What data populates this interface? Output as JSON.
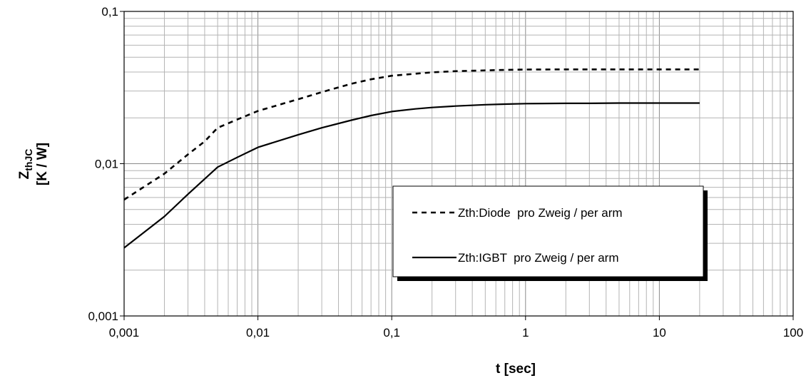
{
  "chart_data": {
    "type": "line",
    "xscale": "log",
    "yscale": "log",
    "xlim": [
      0.001,
      100
    ],
    "ylim": [
      0.001,
      0.1
    ],
    "x_tick_labels": [
      "0,001",
      "0,01",
      "0,1",
      "1",
      "10",
      "100"
    ],
    "y_tick_labels": [
      "0,001",
      "0,01",
      "0,1"
    ],
    "xlabel": "t [sec]",
    "ylabel": {
      "main": "Z",
      "subscript": "thJC",
      "unit": "[K / W]"
    },
    "grid": true,
    "legend_position": "center-right",
    "series": [
      {
        "name": "Zth:Diode  pro Zweig / per arm",
        "style": "dashed",
        "color": "#000000",
        "x": [
          0.001,
          0.002,
          0.003,
          0.004,
          0.005,
          0.007,
          0.01,
          0.02,
          0.03,
          0.05,
          0.07,
          0.1,
          0.2,
          0.3,
          0.5,
          0.7,
          1,
          2,
          3,
          5,
          10,
          20
        ],
        "y": [
          0.0058,
          0.0086,
          0.0115,
          0.014,
          0.0172,
          0.0195,
          0.0222,
          0.0265,
          0.0295,
          0.0335,
          0.0358,
          0.0378,
          0.0398,
          0.0405,
          0.041,
          0.0413,
          0.0415,
          0.0416,
          0.0416,
          0.0416,
          0.0416,
          0.0416
        ]
      },
      {
        "name": "Zth:IGBT  pro Zweig / per arm",
        "style": "solid",
        "color": "#000000",
        "x": [
          0.001,
          0.002,
          0.003,
          0.005,
          0.007,
          0.01,
          0.02,
          0.03,
          0.05,
          0.07,
          0.1,
          0.15,
          0.2,
          0.3,
          0.5,
          0.7,
          1,
          2,
          3,
          5,
          10,
          20
        ],
        "y": [
          0.0028,
          0.0045,
          0.0063,
          0.0095,
          0.011,
          0.0128,
          0.0155,
          0.0172,
          0.0193,
          0.0207,
          0.022,
          0.0229,
          0.0234,
          0.0239,
          0.0244,
          0.0246,
          0.0248,
          0.0249,
          0.0249,
          0.025,
          0.025,
          0.025
        ]
      }
    ]
  }
}
